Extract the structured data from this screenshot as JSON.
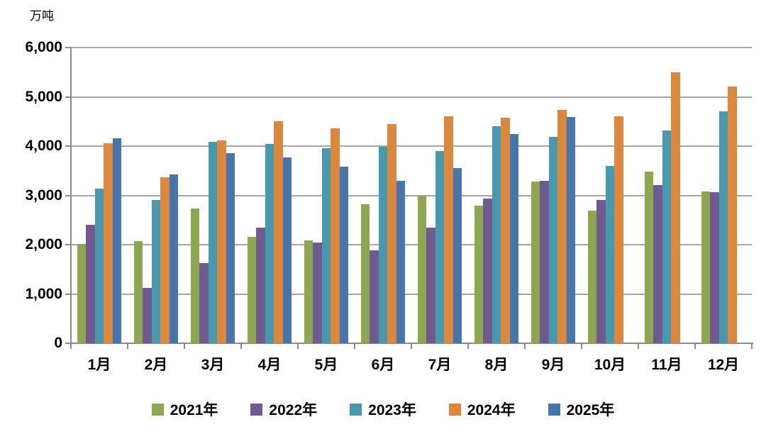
{
  "chart_data": {
    "type": "bar",
    "title": "",
    "ylabel": "万吨",
    "xlabel": "",
    "ylim": [
      0,
      6000
    ],
    "ytick_interval": 1000,
    "yticks": [
      {
        "value": 0,
        "label": "0"
      },
      {
        "value": 1000,
        "label": "1,000"
      },
      {
        "value": 2000,
        "label": "2,000"
      },
      {
        "value": 3000,
        "label": "3,000"
      },
      {
        "value": 4000,
        "label": "4,000"
      },
      {
        "value": 5000,
        "label": "5,000"
      },
      {
        "value": 6000,
        "label": "6,000"
      }
    ],
    "grid": true,
    "legend_position": "bottom",
    "categories": [
      "1月",
      "2月",
      "3月",
      "4月",
      "5月",
      "6月",
      "7月",
      "8月",
      "9月",
      "10月",
      "11月",
      "12月"
    ],
    "series": [
      {
        "name": "2021年",
        "color": "#8CA750",
        "values": [
          2020,
          2070,
          2730,
          2160,
          2090,
          2820,
          3000,
          2790,
          3280,
          2690,
          3480,
          3080
        ]
      },
      {
        "name": "2022年",
        "color": "#6F5A92",
        "values": [
          2400,
          1120,
          1630,
          2340,
          2050,
          1890,
          2340,
          2930,
          3300,
          2910,
          3210,
          3060
        ]
      },
      {
        "name": "2023年",
        "color": "#4899AE",
        "values": [
          3130,
          2910,
          4090,
          4050,
          3950,
          3990,
          3900,
          4410,
          4190,
          3600,
          4320,
          4700
        ]
      },
      {
        "name": "2024年",
        "color": "#DD873C",
        "values": [
          4060,
          3360,
          4120,
          4510,
          4360,
          4440,
          4600,
          4570,
          4730,
          4610,
          5490,
          5210
        ]
      },
      {
        "name": "2025年",
        "color": "#4674AE",
        "values": [
          4160,
          3430,
          3860,
          3770,
          3590,
          3300,
          3550,
          4240,
          4590,
          null,
          null,
          null
        ]
      }
    ]
  },
  "axis_colors": {
    "gridline": "#a6a6a6",
    "axis": "#8c8c8c",
    "text": "#000000"
  }
}
